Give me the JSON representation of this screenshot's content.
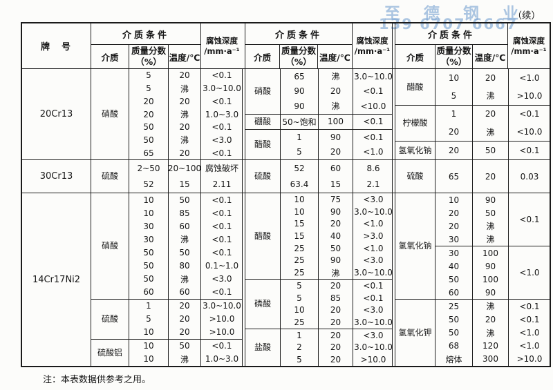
{
  "page": {
    "continued_label": "（续）",
    "note": "注：本表数据供参考之用。",
    "watermark": {
      "line1": "至德钢业",
      "line2": "139 6707 6667",
      "color": "#80a8d4"
    }
  },
  "header": {
    "grade": "牌　号",
    "condition": "介质条件",
    "medium": "介质",
    "mass_fraction": "质量分数\n（%）",
    "temperature": "温度/℃",
    "depth": "腐蚀深度\n/mm·a⁻¹"
  },
  "sections": [
    {
      "grade": "20Cr13",
      "groups": [
        [
          {
            "medium": "硝酸",
            "segments": [
              {
                "rows": [
                  [
                    "5",
                    "20",
                    "<0.1"
                  ],
                  [
                    "5",
                    "沸",
                    "3.0~10.0"
                  ],
                  [
                    "20",
                    "20",
                    "<0.1"
                  ],
                  [
                    "20",
                    "沸",
                    "1.0~3.0"
                  ],
                  [
                    "50",
                    "20",
                    "<0.1"
                  ],
                  [
                    "50",
                    "沸",
                    "<3.0"
                  ],
                  [
                    "65",
                    "20",
                    "<0.1"
                  ]
                ]
              }
            ]
          }
        ],
        [
          {
            "medium": "硝酸",
            "segments": [
              {
                "rows": [
                  [
                    "65",
                    "沸",
                    "3.0~10.0"
                  ],
                  [
                    "90",
                    "20",
                    "<0.1"
                  ],
                  [
                    "90",
                    "沸",
                    "<10.0"
                  ]
                ]
              }
            ]
          },
          {
            "medium": "硼酸",
            "segments": [
              {
                "rows": [
                  [
                    "50~饱和",
                    "100",
                    "<0.1"
                  ]
                ]
              }
            ]
          },
          {
            "medium": "醋酸",
            "segments": [
              {
                "rows": [
                  [
                    "1",
                    "90",
                    "<0.1"
                  ],
                  [
                    "5",
                    "20",
                    "<1.0"
                  ]
                ]
              }
            ]
          }
        ],
        [
          {
            "medium": "醋酸",
            "segments": [
              {
                "rows": [
                  [
                    "10",
                    "20",
                    "<1.0"
                  ],
                  [
                    "5",
                    "沸",
                    ">10.0"
                  ]
                ]
              }
            ]
          },
          {
            "medium": "柠檬酸",
            "segments": [
              {
                "rows": [
                  [
                    "1",
                    "20",
                    "<0.1"
                  ],
                  [
                    "20",
                    "沸",
                    "<10.0"
                  ]
                ]
              }
            ]
          },
          {
            "medium": "氢氧化钠",
            "segments": [
              {
                "rows": [
                  [
                    "20",
                    "50",
                    "<0.1"
                  ]
                ]
              }
            ]
          }
        ]
      ]
    },
    {
      "grade": "30Cr13",
      "groups": [
        [
          {
            "medium": "硫酸",
            "segments": [
              {
                "rows": [
                  [
                    "2~50",
                    "20~100",
                    "腐蚀破坏"
                  ],
                  [
                    "52",
                    "15",
                    "2.11"
                  ]
                ]
              }
            ]
          }
        ],
        [
          {
            "medium": "硫酸",
            "segments": [
              {
                "rows": [
                  [
                    "52",
                    "60",
                    "8.6"
                  ],
                  [
                    "63.4",
                    "15",
                    "2.1"
                  ]
                ]
              }
            ]
          }
        ],
        [
          {
            "medium": "硫酸",
            "segments": [
              {
                "rows": [
                  [
                    "65",
                    "20",
                    "0.03"
                  ]
                ]
              }
            ]
          }
        ]
      ]
    },
    {
      "grade": "14Cr17Ni2",
      "groups": [
        [
          {
            "medium": "硝酸",
            "segments": [
              {
                "rows": [
                  [
                    "10",
                    "50",
                    "<0.1"
                  ],
                  [
                    "10",
                    "85",
                    "<0.1"
                  ],
                  [
                    "30",
                    "60",
                    "<0.1"
                  ],
                  [
                    "30",
                    "沸",
                    "<0.1"
                  ],
                  [
                    "50",
                    "50",
                    "<0.1"
                  ],
                  [
                    "50",
                    "80",
                    "0.1~1.0"
                  ],
                  [
                    "50",
                    "沸",
                    "<3.0"
                  ],
                  [
                    "60",
                    "60",
                    "<0.1"
                  ]
                ]
              }
            ]
          },
          {
            "medium": "硫酸",
            "segments": [
              {
                "rows": [
                  [
                    "1",
                    "20",
                    "3.0~10.0"
                  ],
                  [
                    "5",
                    "20",
                    ">10.0"
                  ],
                  [
                    "10",
                    "20",
                    ">10.0"
                  ]
                ]
              }
            ]
          },
          {
            "medium": "硫酸铝",
            "segments": [
              {
                "rows": [
                  [
                    "10",
                    "50",
                    "<0.1"
                  ],
                  [
                    "10",
                    "沸",
                    "1.0~3.0"
                  ]
                ]
              }
            ]
          }
        ],
        [
          {
            "medium": "醋酸",
            "segments": [
              {
                "rows": [
                  [
                    "10",
                    "75",
                    "<3.0"
                  ],
                  [
                    "10",
                    "90",
                    "3.0~10.0"
                  ],
                  [
                    "15",
                    "20",
                    "<1.0"
                  ],
                  [
                    "15",
                    "40",
                    ">3.0"
                  ],
                  [
                    "25",
                    "50",
                    "<1.0"
                  ],
                  [
                    "25",
                    "90",
                    "<3.0"
                  ],
                  [
                    "25",
                    "沸",
                    "3.0~10.0"
                  ]
                ]
              }
            ]
          },
          {
            "medium": "磷酸",
            "segments": [
              {
                "rows": [
                  [
                    "5",
                    "20",
                    "<0.1"
                  ],
                  [
                    "5",
                    "85",
                    "<0.1"
                  ],
                  [
                    "10",
                    "20",
                    "<3.0"
                  ],
                  [
                    "25",
                    "20",
                    "3.0~10.0"
                  ]
                ]
              }
            ]
          },
          {
            "medium": "盐酸",
            "segments": [
              {
                "rows": [
                  [
                    "1",
                    "20",
                    "<3.0"
                  ],
                  [
                    "2",
                    "20",
                    "3.0~10.0"
                  ],
                  [
                    "5",
                    "20",
                    ">10.0"
                  ]
                ]
              }
            ]
          }
        ],
        [
          {
            "medium": "氢氧化钠",
            "segments": [
              {
                "depth": "<0.1",
                "rows": [
                  [
                    "10",
                    "90"
                  ],
                  [
                    "20",
                    "50"
                  ],
                  [
                    "20",
                    "沸"
                  ],
                  [
                    "30",
                    "沸"
                  ]
                ]
              },
              {
                "depth": "<1.0",
                "rows": [
                  [
                    "30",
                    "100"
                  ],
                  [
                    "40",
                    "90"
                  ],
                  [
                    "50",
                    "100"
                  ],
                  [
                    "60",
                    "90"
                  ]
                ]
              }
            ]
          },
          {
            "medium": "氢氧化钾",
            "segments": [
              {
                "rows": [
                  [
                    "25",
                    "沸",
                    "<0.1"
                  ],
                  [
                    "50",
                    "20",
                    "<0.1"
                  ],
                  [
                    "50",
                    "沸",
                    "<1.0"
                  ],
                  [
                    "68",
                    "120",
                    "<1.0"
                  ],
                  [
                    "熔体",
                    "300",
                    ">10.0"
                  ]
                ]
              }
            ]
          }
        ]
      ]
    }
  ]
}
